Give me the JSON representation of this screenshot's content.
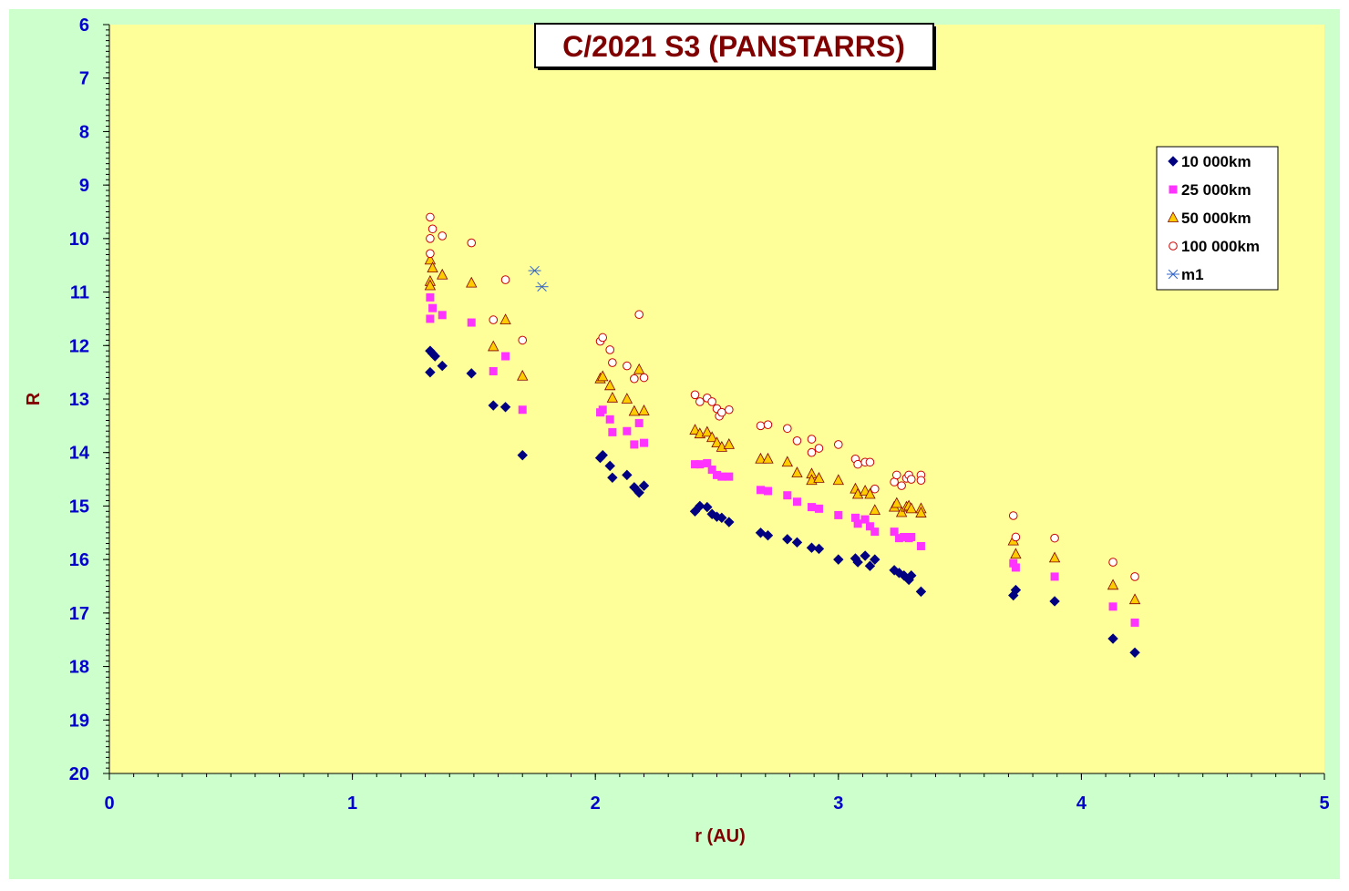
{
  "chart_data": {
    "type": "scatter",
    "title": "C/2021 S3 (PANSTARRS)",
    "xlabel": "r (AU)",
    "ylabel": "R",
    "xlim": [
      0,
      5
    ],
    "ylim": [
      6,
      20
    ],
    "y_inverted": true,
    "x_ticks": [
      "0",
      "1",
      "2",
      "3",
      "4",
      "5"
    ],
    "y_ticks": [
      "6",
      "7",
      "8",
      "9",
      "10",
      "11",
      "12",
      "13",
      "14",
      "15",
      "16",
      "17",
      "18",
      "19",
      "20"
    ],
    "grid": false,
    "legend_position": "right",
    "colors": {
      "outer_background": "#ccffcc",
      "plot_background": "#ffff99",
      "axis_text": "#0000cc",
      "axis_title": "#800000",
      "title_text": "#800000"
    },
    "series": [
      {
        "name": "10 000km",
        "marker": "diamond",
        "color": "#000080",
        "points": [
          [
            1.32,
            12.1
          ],
          [
            1.33,
            12.15
          ],
          [
            1.34,
            12.2
          ],
          [
            1.32,
            12.5
          ],
          [
            1.37,
            12.38
          ],
          [
            1.49,
            12.52
          ],
          [
            1.58,
            13.12
          ],
          [
            1.63,
            13.15
          ],
          [
            1.7,
            14.05
          ],
          [
            2.02,
            14.1
          ],
          [
            2.03,
            14.05
          ],
          [
            2.06,
            14.25
          ],
          [
            2.07,
            14.47
          ],
          [
            2.13,
            14.42
          ],
          [
            2.16,
            14.65
          ],
          [
            2.18,
            14.75
          ],
          [
            2.2,
            14.62
          ],
          [
            2.41,
            15.1
          ],
          [
            2.43,
            15.0
          ],
          [
            2.46,
            15.02
          ],
          [
            2.48,
            15.15
          ],
          [
            2.5,
            15.2
          ],
          [
            2.52,
            15.22
          ],
          [
            2.55,
            15.3
          ],
          [
            2.68,
            15.5
          ],
          [
            2.71,
            15.55
          ],
          [
            2.79,
            15.62
          ],
          [
            2.83,
            15.68
          ],
          [
            2.89,
            15.78
          ],
          [
            2.92,
            15.8
          ],
          [
            3.0,
            16.0
          ],
          [
            3.07,
            15.98
          ],
          [
            3.08,
            16.05
          ],
          [
            3.11,
            15.93
          ],
          [
            3.13,
            16.12
          ],
          [
            3.15,
            16.0
          ],
          [
            3.23,
            16.2
          ],
          [
            3.25,
            16.25
          ],
          [
            3.27,
            16.3
          ],
          [
            3.29,
            16.38
          ],
          [
            3.3,
            16.3
          ],
          [
            3.34,
            16.6
          ],
          [
            3.72,
            16.67
          ],
          [
            3.73,
            16.57
          ],
          [
            3.89,
            16.78
          ],
          [
            4.13,
            17.48
          ],
          [
            4.22,
            17.74
          ]
        ]
      },
      {
        "name": "25 000km",
        "marker": "square",
        "color": "#ff33ff",
        "points": [
          [
            1.32,
            11.1
          ],
          [
            1.33,
            11.3
          ],
          [
            1.32,
            11.5
          ],
          [
            1.37,
            11.43
          ],
          [
            1.49,
            11.57
          ],
          [
            1.58,
            12.48
          ],
          [
            1.63,
            12.2
          ],
          [
            1.7,
            13.2
          ],
          [
            2.02,
            13.25
          ],
          [
            2.03,
            13.2
          ],
          [
            2.06,
            13.38
          ],
          [
            2.07,
            13.62
          ],
          [
            2.13,
            13.6
          ],
          [
            2.16,
            13.85
          ],
          [
            2.18,
            13.45
          ],
          [
            2.2,
            13.82
          ],
          [
            2.41,
            14.22
          ],
          [
            2.43,
            14.22
          ],
          [
            2.46,
            14.2
          ],
          [
            2.48,
            14.32
          ],
          [
            2.5,
            14.42
          ],
          [
            2.52,
            14.45
          ],
          [
            2.55,
            14.45
          ],
          [
            2.68,
            14.7
          ],
          [
            2.71,
            14.72
          ],
          [
            2.79,
            14.8
          ],
          [
            2.83,
            14.92
          ],
          [
            2.89,
            15.02
          ],
          [
            2.92,
            15.05
          ],
          [
            3.0,
            15.17
          ],
          [
            3.07,
            15.22
          ],
          [
            3.08,
            15.33
          ],
          [
            3.11,
            15.25
          ],
          [
            3.13,
            15.38
          ],
          [
            3.15,
            15.48
          ],
          [
            3.23,
            15.48
          ],
          [
            3.25,
            15.6
          ],
          [
            3.27,
            15.58
          ],
          [
            3.29,
            15.6
          ],
          [
            3.3,
            15.58
          ],
          [
            3.34,
            15.75
          ],
          [
            3.72,
            16.07
          ],
          [
            3.73,
            16.15
          ],
          [
            3.89,
            16.32
          ],
          [
            4.13,
            16.88
          ],
          [
            4.22,
            17.18
          ]
        ]
      },
      {
        "name": "50 000km",
        "marker": "triangle",
        "color": "#ffcc00",
        "points": [
          [
            1.32,
            10.4
          ],
          [
            1.33,
            10.55
          ],
          [
            1.32,
            10.8
          ],
          [
            1.32,
            10.88
          ],
          [
            1.37,
            10.68
          ],
          [
            1.49,
            10.83
          ],
          [
            1.58,
            12.02
          ],
          [
            1.63,
            11.52
          ],
          [
            1.7,
            12.57
          ],
          [
            2.02,
            12.62
          ],
          [
            2.03,
            12.58
          ],
          [
            2.06,
            12.75
          ],
          [
            2.07,
            12.98
          ],
          [
            2.13,
            13.0
          ],
          [
            2.16,
            13.23
          ],
          [
            2.18,
            12.45
          ],
          [
            2.2,
            13.22
          ],
          [
            2.41,
            13.58
          ],
          [
            2.43,
            13.65
          ],
          [
            2.46,
            13.62
          ],
          [
            2.48,
            13.72
          ],
          [
            2.5,
            13.82
          ],
          [
            2.52,
            13.9
          ],
          [
            2.55,
            13.85
          ],
          [
            2.68,
            14.12
          ],
          [
            2.71,
            14.12
          ],
          [
            2.79,
            14.18
          ],
          [
            2.83,
            14.38
          ],
          [
            2.89,
            14.4
          ],
          [
            2.89,
            14.52
          ],
          [
            2.92,
            14.48
          ],
          [
            3.0,
            14.52
          ],
          [
            3.07,
            14.68
          ],
          [
            3.08,
            14.78
          ],
          [
            3.11,
            14.72
          ],
          [
            3.13,
            14.78
          ],
          [
            3.15,
            15.08
          ],
          [
            3.23,
            15.02
          ],
          [
            3.24,
            14.95
          ],
          [
            3.26,
            15.12
          ],
          [
            3.28,
            15.02
          ],
          [
            3.29,
            15.0
          ],
          [
            3.3,
            15.05
          ],
          [
            3.34,
            15.05
          ],
          [
            3.34,
            15.13
          ],
          [
            3.72,
            15.65
          ],
          [
            3.73,
            15.9
          ],
          [
            3.89,
            15.97
          ],
          [
            4.13,
            16.48
          ],
          [
            4.22,
            16.75
          ]
        ]
      },
      {
        "name": "100 000km",
        "marker": "circle",
        "color": "#cc0000",
        "points": [
          [
            1.32,
            9.6
          ],
          [
            1.33,
            9.82
          ],
          [
            1.32,
            10.0
          ],
          [
            1.32,
            10.28
          ],
          [
            1.37,
            9.95
          ],
          [
            1.49,
            10.08
          ],
          [
            1.58,
            11.52
          ],
          [
            1.63,
            10.77
          ],
          [
            1.7,
            11.9
          ],
          [
            2.02,
            11.92
          ],
          [
            2.03,
            11.85
          ],
          [
            2.06,
            12.08
          ],
          [
            2.07,
            12.32
          ],
          [
            2.13,
            12.38
          ],
          [
            2.16,
            12.62
          ],
          [
            2.18,
            11.42
          ],
          [
            2.2,
            12.6
          ],
          [
            2.41,
            12.92
          ],
          [
            2.43,
            13.05
          ],
          [
            2.46,
            12.98
          ],
          [
            2.48,
            13.05
          ],
          [
            2.5,
            13.18
          ],
          [
            2.51,
            13.32
          ],
          [
            2.52,
            13.25
          ],
          [
            2.55,
            13.2
          ],
          [
            2.68,
            13.5
          ],
          [
            2.71,
            13.48
          ],
          [
            2.79,
            13.55
          ],
          [
            2.83,
            13.78
          ],
          [
            2.89,
            13.75
          ],
          [
            2.89,
            14.0
          ],
          [
            2.92,
            13.92
          ],
          [
            3.0,
            13.85
          ],
          [
            3.07,
            14.12
          ],
          [
            3.08,
            14.22
          ],
          [
            3.11,
            14.18
          ],
          [
            3.13,
            14.18
          ],
          [
            3.15,
            14.68
          ],
          [
            3.23,
            14.55
          ],
          [
            3.24,
            14.42
          ],
          [
            3.26,
            14.62
          ],
          [
            3.28,
            14.48
          ],
          [
            3.29,
            14.42
          ],
          [
            3.3,
            14.5
          ],
          [
            3.34,
            14.42
          ],
          [
            3.34,
            14.52
          ],
          [
            3.72,
            15.18
          ],
          [
            3.73,
            15.58
          ],
          [
            3.89,
            15.6
          ],
          [
            4.13,
            16.05
          ],
          [
            4.22,
            16.32
          ]
        ]
      },
      {
        "name": "m1",
        "marker": "asterisk",
        "color": "#3366cc",
        "points": [
          [
            1.75,
            10.6
          ],
          [
            1.78,
            10.9
          ]
        ]
      }
    ]
  }
}
